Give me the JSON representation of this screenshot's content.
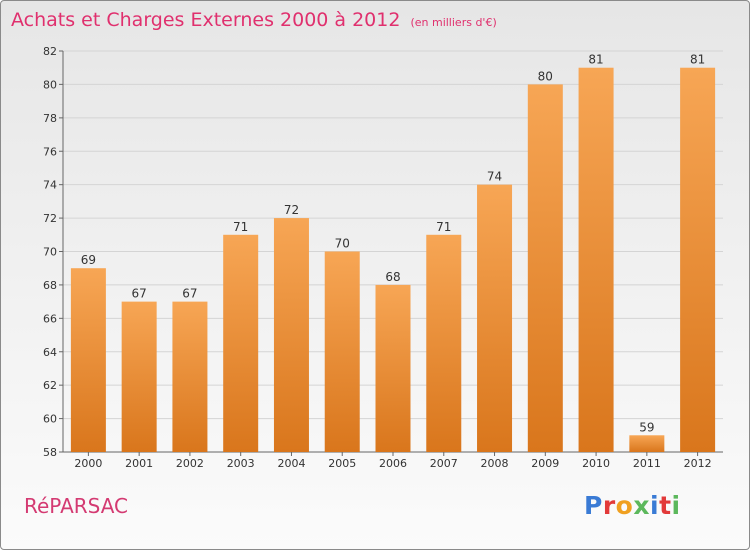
{
  "title": "Achats et Charges Externes 2000 à 2012",
  "subtitle": "(en milliers d'€)",
  "commune": "RéPARSAC",
  "logo": {
    "text": "Proxiti",
    "letter_colors": [
      "#3a7bd5",
      "#e23a3a",
      "#f0a020",
      "#5cb85c",
      "#3a7bd5",
      "#e23a3a",
      "#5cb85c"
    ]
  },
  "colors": {
    "title": "#e0306e",
    "bar_top": "#f7a655",
    "bar_bottom": "#d9761c"
  },
  "chart_data": {
    "type": "bar",
    "categories": [
      "2000",
      "2001",
      "2002",
      "2003",
      "2004",
      "2005",
      "2006",
      "2007",
      "2008",
      "2009",
      "2010",
      "2011",
      "2012"
    ],
    "values": [
      69,
      67,
      67,
      71,
      72,
      70,
      68,
      71,
      74,
      80,
      81,
      59,
      81
    ],
    "title": "Achats et Charges Externes 2000 à 2012",
    "ylim": [
      58,
      82
    ],
    "yticks": [
      58,
      60,
      62,
      64,
      66,
      68,
      70,
      72,
      74,
      76,
      78,
      80,
      82
    ],
    "grid": true,
    "data_labels": true
  }
}
